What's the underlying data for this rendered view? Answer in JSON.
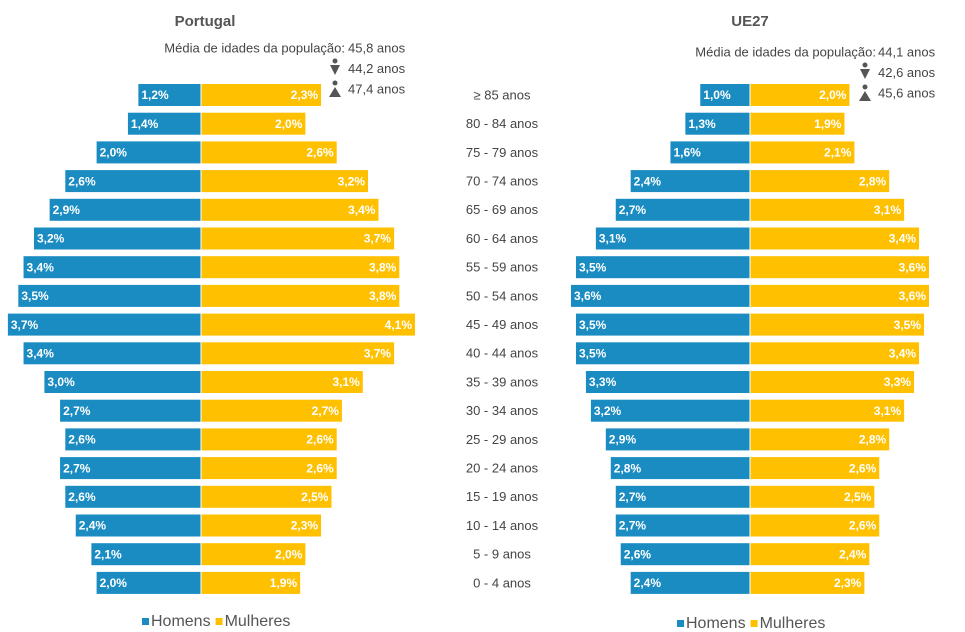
{
  "chart_data": [
    {
      "type": "pyramid",
      "title": "Portugal",
      "mean_age_label": "Média de idades da população:",
      "mean_age": [
        "45,8 anos",
        "44,2 anos",
        "47,4 anos"
      ],
      "categories": [
        "≥ 85 anos",
        "80 - 84 anos",
        "75 - 79 anos",
        "70 - 74 anos",
        "65 - 69 anos",
        "60 - 64 anos",
        "55 - 59 anos",
        "50 - 54 anos",
        "45 - 49 anos",
        "40 - 44 anos",
        "35 - 39 anos",
        "30 - 34 anos",
        "25 - 29 anos",
        "20 - 24 anos",
        "15 - 19 anos",
        "10 - 14 anos",
        "5 - 9 anos",
        "0 - 4 anos"
      ],
      "series": [
        {
          "name": "Homens",
          "color": "#1a8cc2",
          "values": [
            1.2,
            1.4,
            2.0,
            2.6,
            2.9,
            3.2,
            3.4,
            3.5,
            3.7,
            3.4,
            3.0,
            2.7,
            2.6,
            2.7,
            2.6,
            2.4,
            2.1,
            2.0
          ],
          "value_labels": [
            "1,2%",
            "1,4%",
            "2,0%",
            "2,6%",
            "2,9%",
            "3,2%",
            "3,4%",
            "3,5%",
            "3,7%",
            "3,4%",
            "3,0%",
            "2,7%",
            "2,6%",
            "2,7%",
            "2,6%",
            "2,4%",
            "2,1%",
            "2,0%"
          ]
        },
        {
          "name": "Mulheres",
          "color": "#ffc000",
          "values": [
            2.3,
            2.0,
            2.6,
            3.2,
            3.4,
            3.7,
            3.8,
            3.8,
            4.1,
            3.7,
            3.1,
            2.7,
            2.6,
            2.6,
            2.5,
            2.3,
            2.0,
            1.9
          ],
          "value_labels": [
            "2,3%",
            "2,0%",
            "2,6%",
            "3,2%",
            "3,4%",
            "3,7%",
            "3,8%",
            "3,8%",
            "4,1%",
            "3,7%",
            "3,1%",
            "2,7%",
            "2,6%",
            "2,6%",
            "2,5%",
            "2,3%",
            "2,0%",
            "1,9%"
          ]
        }
      ]
    },
    {
      "type": "pyramid",
      "title": "UE27",
      "mean_age_label": "Média de idades da população:",
      "mean_age": [
        "44,1 anos",
        "42,6 anos",
        "45,6 anos"
      ],
      "series": [
        {
          "name": "Homens",
          "color": "#1a8cc2",
          "values": [
            1.0,
            1.3,
            1.6,
            2.4,
            2.7,
            3.1,
            3.5,
            3.6,
            3.5,
            3.5,
            3.3,
            3.2,
            2.9,
            2.8,
            2.7,
            2.7,
            2.6,
            2.4
          ],
          "value_labels": [
            "1,0%",
            "1,3%",
            "1,6%",
            "2,4%",
            "2,7%",
            "3,1%",
            "3,5%",
            "3,6%",
            "3,5%",
            "3,5%",
            "3,3%",
            "3,2%",
            "2,9%",
            "2,8%",
            "2,7%",
            "2,7%",
            "2,6%",
            "2,4%"
          ]
        },
        {
          "name": "Mulheres",
          "color": "#ffc000",
          "values": [
            2.0,
            1.9,
            2.1,
            2.8,
            3.1,
            3.4,
            3.6,
            3.6,
            3.5,
            3.4,
            3.3,
            3.1,
            2.8,
            2.6,
            2.5,
            2.6,
            2.4,
            2.3
          ],
          "value_labels": [
            "2,0%",
            "1,9%",
            "2,1%",
            "2,8%",
            "3,1%",
            "3,4%",
            "3,6%",
            "3,6%",
            "3,5%",
            "3,4%",
            "3,3%",
            "3,1%",
            "2,8%",
            "2,6%",
            "2,5%",
            "2,6%",
            "2,4%",
            "2,3%"
          ]
        }
      ]
    }
  ]
}
